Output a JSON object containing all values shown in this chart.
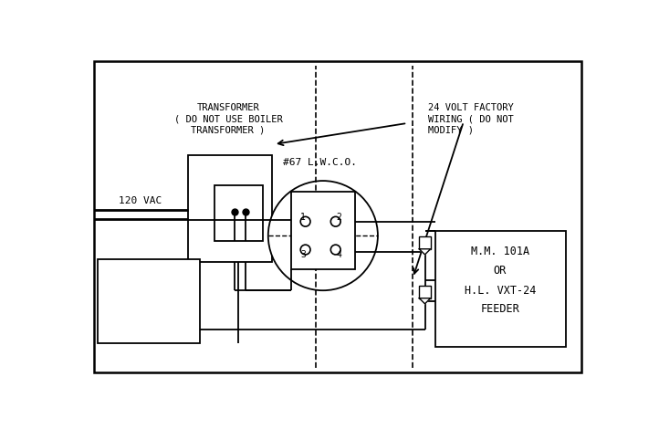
{
  "bg_color": "#ffffff",
  "line_color": "#000000",
  "fig_width": 7.22,
  "fig_height": 4.7,
  "dpi": 100,
  "font_family": "monospace",
  "transformer_text": [
    "TRANSFORMER",
    "( DO NOT USE BOILER",
    "TRANSFORMER )"
  ],
  "lwco_label": "#67 L.W.C.O.",
  "volt_text": [
    "24 VOLT FACTORY",
    "WIRING ( DO NOT",
    "MODIFY )"
  ],
  "mm_text": [
    "M.M. 101A",
    "OR",
    "H.L. VXT-24",
    "FEEDER"
  ],
  "vac_text": "120 VAC"
}
